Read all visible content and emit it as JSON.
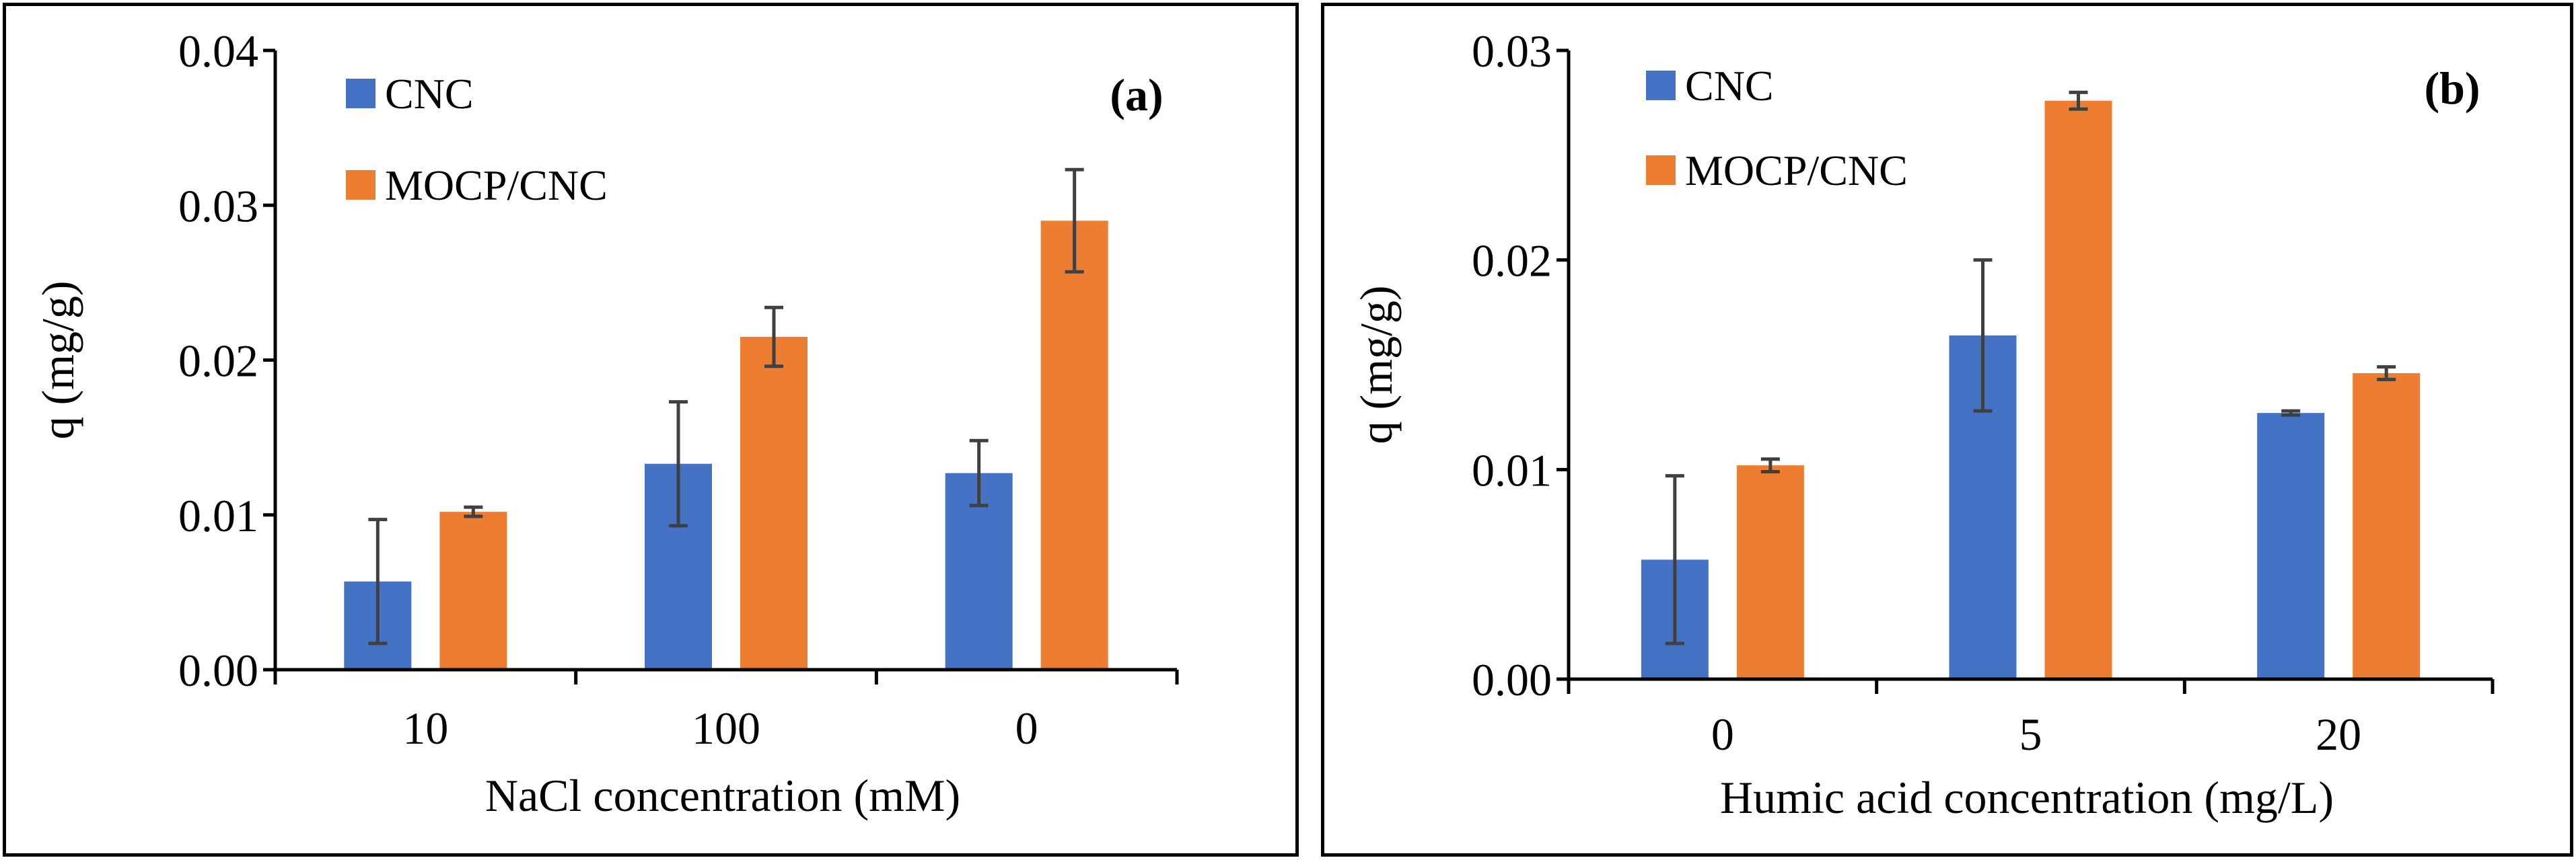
{
  "colors": {
    "cnc": "#4472C4",
    "mocp": "#ED7D31",
    "error_bar": "#404040",
    "axis": "#000000"
  },
  "chart_data": [
    {
      "type": "bar",
      "panel_label": "(a)",
      "xlabel": "NaCl concentration (mM)",
      "ylabel": "q (mg/g)",
      "ylim": [
        0,
        0.04
      ],
      "ytick_values": [
        0,
        0.01,
        0.02,
        0.03,
        0.04
      ],
      "ytick_labels": [
        "0.00",
        "0.01",
        "0.02",
        "0.03",
        "0.04"
      ],
      "categories": [
        "10",
        "100",
        "0"
      ],
      "legend": [
        "CNC",
        "MOCP/CNC"
      ],
      "legend_position": "top-left",
      "series": [
        {
          "name": "CNC",
          "values": [
            0.0057,
            0.0133,
            0.0127
          ],
          "errors": [
            0.004,
            0.004,
            0.0021
          ]
        },
        {
          "name": "MOCP/CNC",
          "values": [
            0.0102,
            0.0215,
            0.029
          ],
          "errors": [
            0.0003,
            0.0019,
            0.0033
          ]
        }
      ]
    },
    {
      "type": "bar",
      "panel_label": "(b)",
      "xlabel": "Humic acid concentration (mg/L)",
      "ylabel": "q (mg/g)",
      "ylim": [
        0,
        0.03
      ],
      "ytick_values": [
        0,
        0.01,
        0.02,
        0.03
      ],
      "ytick_labels": [
        "0.00",
        "0.01",
        "0.02",
        "0.03"
      ],
      "categories": [
        "0",
        "5",
        "20"
      ],
      "legend": [
        "CNC",
        "MOCP/CNC"
      ],
      "legend_position": "top-left",
      "series": [
        {
          "name": "CNC",
          "values": [
            0.0057,
            0.0164,
            0.0127
          ],
          "errors": [
            0.004,
            0.0036,
            0.0001
          ]
        },
        {
          "name": "MOCP/CNC",
          "values": [
            0.0102,
            0.0276,
            0.0146
          ],
          "errors": [
            0.0003,
            0.0004,
            0.0003
          ]
        }
      ]
    }
  ]
}
